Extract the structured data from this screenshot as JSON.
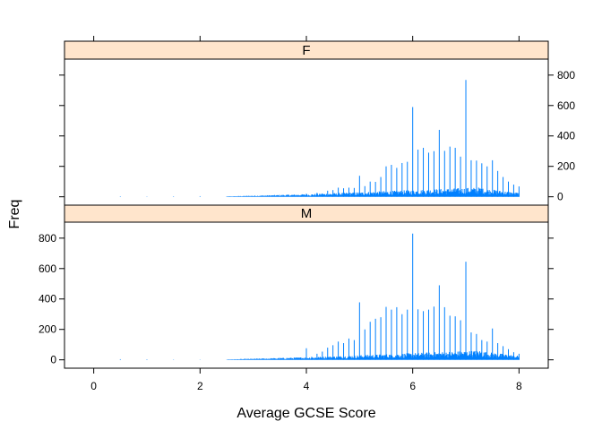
{
  "chart_data": {
    "type": "bar",
    "xlabel": "Average GCSE Score",
    "ylabel": "Freq",
    "xlim": [
      -0.55,
      8.55
    ],
    "ylim": [
      -55,
      905
    ],
    "x_ticks": [
      0,
      2,
      4,
      6,
      8
    ],
    "y_ticks": [
      0,
      200,
      400,
      600,
      800
    ],
    "panels": [
      {
        "strip": "F",
        "spikes": [
          {
            "x": 3.9,
            "y": 12
          },
          {
            "x": 4.0,
            "y": 20
          },
          {
            "x": 4.1,
            "y": 14
          },
          {
            "x": 4.2,
            "y": 26
          },
          {
            "x": 4.3,
            "y": 22
          },
          {
            "x": 4.4,
            "y": 40
          },
          {
            "x": 4.5,
            "y": 44
          },
          {
            "x": 4.6,
            "y": 60
          },
          {
            "x": 4.7,
            "y": 56
          },
          {
            "x": 4.8,
            "y": 60
          },
          {
            "x": 4.9,
            "y": 58
          },
          {
            "x": 5.0,
            "y": 138
          },
          {
            "x": 5.1,
            "y": 70
          },
          {
            "x": 5.2,
            "y": 100
          },
          {
            "x": 5.3,
            "y": 98
          },
          {
            "x": 5.4,
            "y": 130
          },
          {
            "x": 5.5,
            "y": 200
          },
          {
            "x": 5.6,
            "y": 210
          },
          {
            "x": 5.7,
            "y": 190
          },
          {
            "x": 5.8,
            "y": 222
          },
          {
            "x": 5.9,
            "y": 230
          },
          {
            "x": 6.0,
            "y": 590
          },
          {
            "x": 6.1,
            "y": 310
          },
          {
            "x": 6.2,
            "y": 322
          },
          {
            "x": 6.3,
            "y": 290
          },
          {
            "x": 6.4,
            "y": 300
          },
          {
            "x": 6.5,
            "y": 440
          },
          {
            "x": 6.6,
            "y": 302
          },
          {
            "x": 6.7,
            "y": 330
          },
          {
            "x": 6.8,
            "y": 322
          },
          {
            "x": 6.9,
            "y": 264
          },
          {
            "x": 7.0,
            "y": 768
          },
          {
            "x": 7.1,
            "y": 240
          },
          {
            "x": 7.2,
            "y": 238
          },
          {
            "x": 7.3,
            "y": 220
          },
          {
            "x": 7.4,
            "y": 200
          },
          {
            "x": 7.5,
            "y": 240
          },
          {
            "x": 7.6,
            "y": 170
          },
          {
            "x": 7.7,
            "y": 130
          },
          {
            "x": 7.8,
            "y": 100
          },
          {
            "x": 7.9,
            "y": 80
          },
          {
            "x": 8.0,
            "y": 68
          }
        ]
      },
      {
        "strip": "M",
        "spikes": [
          {
            "x": 3.9,
            "y": 14
          },
          {
            "x": 4.0,
            "y": 76
          },
          {
            "x": 4.1,
            "y": 20
          },
          {
            "x": 4.2,
            "y": 40
          },
          {
            "x": 4.3,
            "y": 54
          },
          {
            "x": 4.4,
            "y": 80
          },
          {
            "x": 4.5,
            "y": 96
          },
          {
            "x": 4.6,
            "y": 120
          },
          {
            "x": 4.7,
            "y": 110
          },
          {
            "x": 4.8,
            "y": 140
          },
          {
            "x": 4.9,
            "y": 130
          },
          {
            "x": 5.0,
            "y": 378
          },
          {
            "x": 5.1,
            "y": 200
          },
          {
            "x": 5.2,
            "y": 250
          },
          {
            "x": 5.3,
            "y": 270
          },
          {
            "x": 5.4,
            "y": 280
          },
          {
            "x": 5.5,
            "y": 348
          },
          {
            "x": 5.6,
            "y": 330
          },
          {
            "x": 5.7,
            "y": 346
          },
          {
            "x": 5.8,
            "y": 300
          },
          {
            "x": 5.9,
            "y": 330
          },
          {
            "x": 6.0,
            "y": 830
          },
          {
            "x": 6.1,
            "y": 332
          },
          {
            "x": 6.2,
            "y": 320
          },
          {
            "x": 6.3,
            "y": 330
          },
          {
            "x": 6.4,
            "y": 350
          },
          {
            "x": 6.5,
            "y": 490
          },
          {
            "x": 6.6,
            "y": 346
          },
          {
            "x": 6.7,
            "y": 290
          },
          {
            "x": 6.8,
            "y": 286
          },
          {
            "x": 6.9,
            "y": 260
          },
          {
            "x": 7.0,
            "y": 645
          },
          {
            "x": 7.1,
            "y": 180
          },
          {
            "x": 7.2,
            "y": 170
          },
          {
            "x": 7.3,
            "y": 130
          },
          {
            "x": 7.4,
            "y": 120
          },
          {
            "x": 7.5,
            "y": 206
          },
          {
            "x": 7.6,
            "y": 110
          },
          {
            "x": 7.7,
            "y": 90
          },
          {
            "x": 7.8,
            "y": 70
          },
          {
            "x": 7.9,
            "y": 50
          },
          {
            "x": 8.0,
            "y": 40
          }
        ]
      }
    ]
  },
  "colors": {
    "spike": "#0080ff",
    "strip_fill": "#ffe5cc",
    "frame": "#000000"
  }
}
